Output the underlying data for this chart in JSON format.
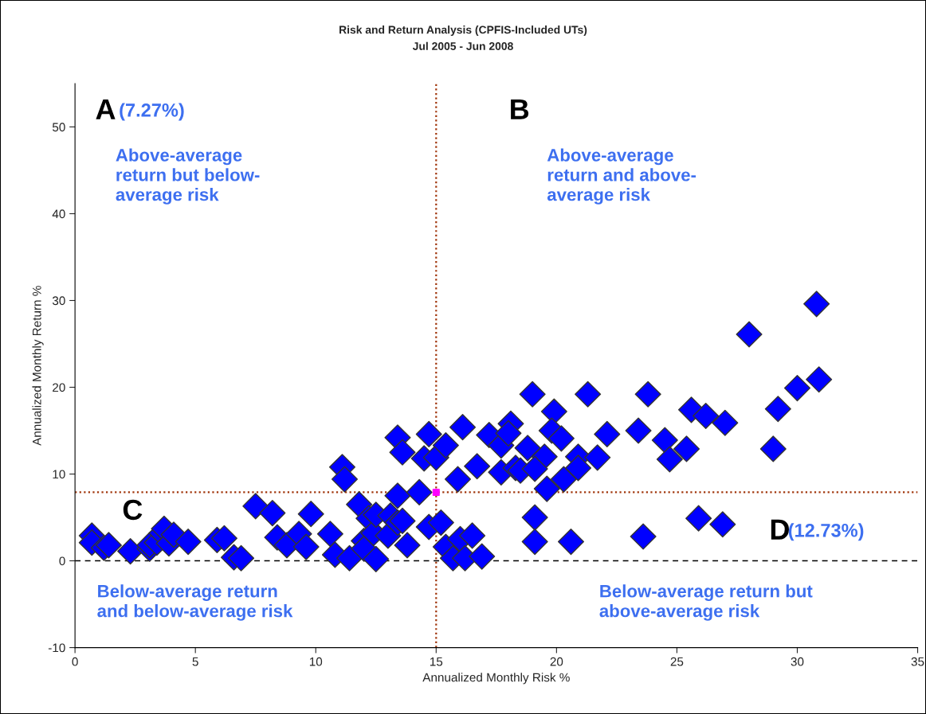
{
  "chart_data": {
    "type": "scatter",
    "title": "Risk and Return Analysis (CPFIS-Included UTs)",
    "subtitle": "Jul 2005 - Jun 2008",
    "xlabel": "Annualized Monthly Risk %",
    "ylabel": "Annualized Monthly Return %",
    "xlim": [
      0,
      35
    ],
    "ylim": [
      -10,
      55
    ],
    "xticks": [
      0,
      5,
      10,
      15,
      20,
      25,
      30,
      35
    ],
    "yticks": [
      -10,
      0,
      10,
      20,
      30,
      40,
      50
    ],
    "grid": false,
    "legend": false,
    "marker": "diamond",
    "series": [
      {
        "color": "#0000ff",
        "x": [
          0.7,
          0.7,
          1.2,
          1.4,
          2.3,
          3.1,
          3.1,
          3.4,
          3.6,
          3.7,
          3.9,
          4.1,
          4.7,
          5.9,
          6.2,
          6.6,
          6.9,
          7.5,
          8.2,
          8.4,
          8.8,
          9.3,
          9.6,
          9.8,
          10.6,
          10.8,
          11.1,
          11.2,
          11.4,
          11.8,
          12.2,
          12.0,
          12.0,
          12.4,
          12.5,
          12.5,
          13.0,
          13.1,
          13.4,
          13.6,
          13.8,
          13.4,
          14.3,
          13.4,
          13.6,
          14.7,
          14.5,
          15.0,
          15.4,
          16.1,
          15.9,
          14.7,
          15.2,
          15.4,
          15.7,
          16.0,
          16.2,
          16.5,
          16.9,
          16.7,
          17.2,
          17.7,
          18.1,
          18.0,
          17.7,
          18.3,
          18.5,
          19.0,
          19.9,
          19.8,
          20.2,
          18.8,
          19.5,
          19.1,
          19.6,
          20.3,
          20.9,
          20.9,
          21.7,
          21.3,
          22.1,
          23.8,
          23.4,
          24.5,
          24.7,
          19.1,
          19.1,
          20.6,
          23.6,
          30.8,
          28.0,
          30.9,
          30.0,
          29.2,
          29.0,
          25.6,
          26.2,
          27.0,
          25.4,
          25.9,
          26.9
        ],
        "values": [
          2.9,
          2.1,
          1.5,
          1.8,
          1.1,
          1.4,
          1.8,
          2.1,
          3.2,
          3.7,
          2.0,
          3.0,
          2.2,
          2.4,
          2.6,
          0.4,
          0.3,
          6.3,
          5.5,
          2.7,
          1.8,
          3.1,
          1.6,
          5.4,
          3.1,
          0.7,
          10.8,
          9.4,
          0.3,
          6.5,
          4.9,
          2.3,
          1.4,
          3.2,
          5.3,
          0.2,
          2.9,
          5.2,
          4.4,
          4.6,
          1.8,
          7.5,
          7.9,
          14.2,
          12.5,
          14.6,
          11.8,
          11.9,
          13.3,
          15.4,
          9.4,
          3.9,
          4.4,
          1.6,
          0.3,
          2.5,
          0.3,
          2.9,
          0.5,
          10.9,
          14.5,
          13.3,
          15.8,
          14.7,
          10.2,
          10.7,
          10.4,
          19.2,
          17.2,
          15.0,
          14.1,
          13.0,
          12.0,
          10.6,
          8.3,
          9.4,
          12.0,
          10.7,
          11.9,
          19.2,
          14.6,
          19.2,
          15.0,
          13.9,
          11.7,
          5.0,
          2.2,
          2.2,
          2.8,
          29.6,
          26.1,
          20.9,
          19.9,
          17.5,
          12.9,
          17.4,
          16.7,
          15.9,
          12.9,
          4.9,
          4.2
        ]
      },
      {
        "color": "#ff00ff",
        "marker": "square",
        "x": [
          15.0
        ],
        "values": [
          7.9
        ]
      }
    ],
    "ref_lines": [
      {
        "axis": "x",
        "value": 15.0,
        "color": "#a0350a",
        "line_style": "dotted"
      },
      {
        "axis": "y",
        "value": 7.9,
        "color": "#a0350a",
        "line_style": "dotted"
      },
      {
        "axis": "y",
        "value": 0,
        "color": "#000000",
        "line_style": "dashed"
      }
    ],
    "annotations": [
      "A",
      "(7.27%)",
      "Above-average\nreturn but below-\naverage risk",
      "B",
      "Above-average\nreturn and above-\naverage risk",
      "C",
      "Below-average return\nand below-average risk",
      "D",
      "(12.73%)",
      "Below-average return but\nabove-average risk"
    ]
  }
}
